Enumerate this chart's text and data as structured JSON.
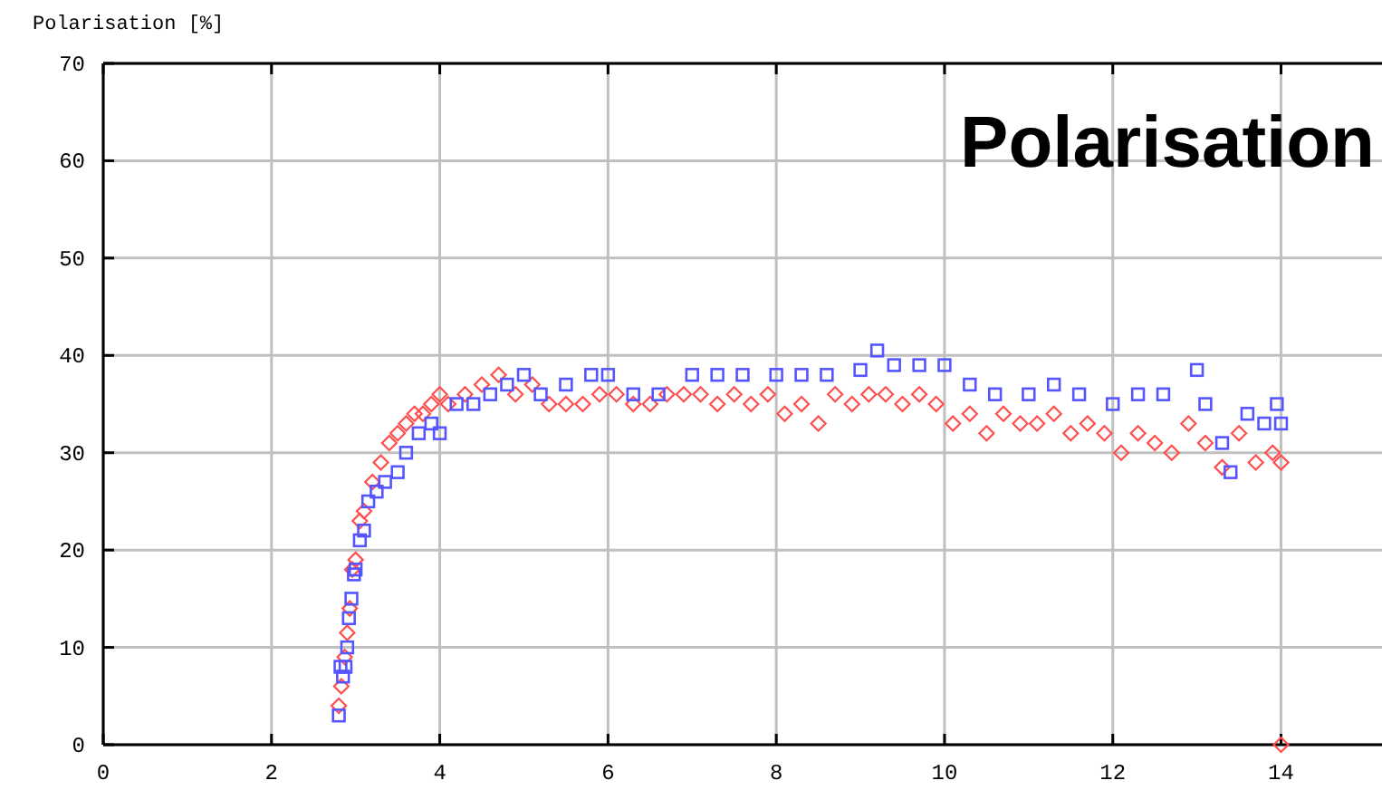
{
  "chart_data": {
    "type": "scatter",
    "title": "Polarisation",
    "ylabel": "Polarisation [%]",
    "xlim": [
      0,
      15.2
    ],
    "ylim": [
      0,
      70
    ],
    "xticks": [
      0,
      2,
      4,
      6,
      8,
      10,
      12,
      14
    ],
    "yticks": [
      0,
      10,
      20,
      30,
      40,
      50,
      60,
      70
    ],
    "grid": true,
    "series": [
      {
        "color": "#ff4d4d",
        "marker": "diamond",
        "x": [
          2.8,
          2.83,
          2.87,
          2.9,
          2.93,
          2.96,
          3.0,
          3.05,
          3.1,
          3.2,
          3.3,
          3.4,
          3.5,
          3.6,
          3.7,
          3.8,
          3.9,
          4.0,
          4.1,
          4.3,
          4.5,
          4.7,
          4.9,
          5.1,
          5.3,
          5.5,
          5.7,
          5.9,
          6.1,
          6.3,
          6.5,
          6.7,
          6.9,
          7.1,
          7.3,
          7.5,
          7.7,
          7.9,
          8.1,
          8.3,
          8.5,
          8.7,
          8.9,
          9.1,
          9.3,
          9.5,
          9.7,
          9.9,
          10.1,
          10.3,
          10.5,
          10.7,
          10.9,
          11.1,
          11.3,
          11.5,
          11.7,
          11.9,
          12.1,
          12.3,
          12.5,
          12.7,
          12.9,
          13.1,
          13.3,
          13.5,
          13.7,
          13.9,
          14.0,
          14.0
        ],
        "values": [
          4,
          6,
          9,
          11.5,
          14,
          18,
          19,
          23,
          24,
          27,
          29,
          31,
          32,
          33,
          34,
          34,
          35,
          36,
          35,
          36,
          37,
          38,
          36,
          37,
          35,
          35,
          35,
          36,
          36,
          35,
          35,
          36,
          36,
          36,
          35,
          36,
          35,
          36,
          34,
          35,
          33,
          36,
          35,
          36,
          36,
          35,
          36,
          35,
          33,
          34,
          32,
          34,
          33,
          33,
          34,
          32,
          33,
          32,
          30,
          32,
          31,
          30,
          33,
          31,
          28.5,
          32,
          29,
          30,
          29,
          0
        ]
      },
      {
        "color": "#5555ff",
        "marker": "square",
        "x": [
          2.8,
          2.82,
          2.85,
          2.88,
          2.9,
          2.92,
          2.95,
          2.98,
          3.0,
          3.05,
          3.1,
          3.15,
          3.25,
          3.35,
          3.5,
          3.6,
          3.75,
          3.9,
          4.0,
          4.2,
          4.4,
          4.6,
          4.8,
          5.0,
          5.2,
          5.5,
          5.8,
          6.0,
          6.3,
          6.6,
          7.0,
          7.3,
          7.6,
          8.0,
          8.3,
          8.6,
          9.0,
          9.2,
          9.4,
          9.7,
          10.0,
          10.3,
          10.6,
          11.0,
          11.3,
          11.6,
          12.0,
          12.3,
          12.6,
          13.0,
          13.1,
          13.3,
          13.4,
          13.6,
          13.8,
          13.95,
          14.0
        ],
        "values": [
          3,
          8,
          7,
          8,
          10,
          13,
          15,
          17.5,
          18,
          21,
          22,
          25,
          26,
          27,
          28,
          30,
          32,
          33,
          32,
          35,
          35,
          36,
          37,
          38,
          36,
          37,
          38,
          38,
          36,
          36,
          38,
          38,
          38,
          38,
          38,
          38,
          38.5,
          40.5,
          39,
          39,
          39,
          37,
          36,
          36,
          37,
          36,
          35,
          36,
          36,
          38.5,
          35,
          31,
          28,
          34,
          33,
          35,
          33
        ]
      }
    ]
  }
}
